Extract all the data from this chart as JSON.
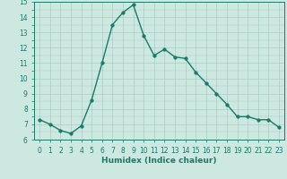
{
  "x": [
    0,
    1,
    2,
    3,
    4,
    5,
    6,
    7,
    8,
    9,
    10,
    11,
    12,
    13,
    14,
    15,
    16,
    17,
    18,
    19,
    20,
    21,
    22,
    23
  ],
  "y": [
    7.3,
    7.0,
    6.6,
    6.4,
    6.9,
    8.6,
    11.0,
    13.5,
    14.3,
    14.8,
    12.8,
    11.5,
    11.9,
    11.4,
    11.3,
    10.4,
    9.7,
    9.0,
    8.3,
    7.5,
    7.5,
    7.3,
    7.3,
    6.8
  ],
  "line_color": "#1a7a6a",
  "marker_color": "#1a7a6a",
  "bg_color": "#cce8e0",
  "grid_color": "#aaccc4",
  "xlabel": "Humidex (Indice chaleur)",
  "ylim": [
    6,
    15
  ],
  "xlim": [
    -0.5,
    23.5
  ],
  "yticks": [
    6,
    7,
    8,
    9,
    10,
    11,
    12,
    13,
    14,
    15
  ],
  "xticks": [
    0,
    1,
    2,
    3,
    4,
    5,
    6,
    7,
    8,
    9,
    10,
    11,
    12,
    13,
    14,
    15,
    16,
    17,
    18,
    19,
    20,
    21,
    22,
    23
  ],
  "tick_fontsize": 5.5,
  "label_fontsize": 6.5,
  "linewidth": 1.0,
  "markersize": 2.5
}
